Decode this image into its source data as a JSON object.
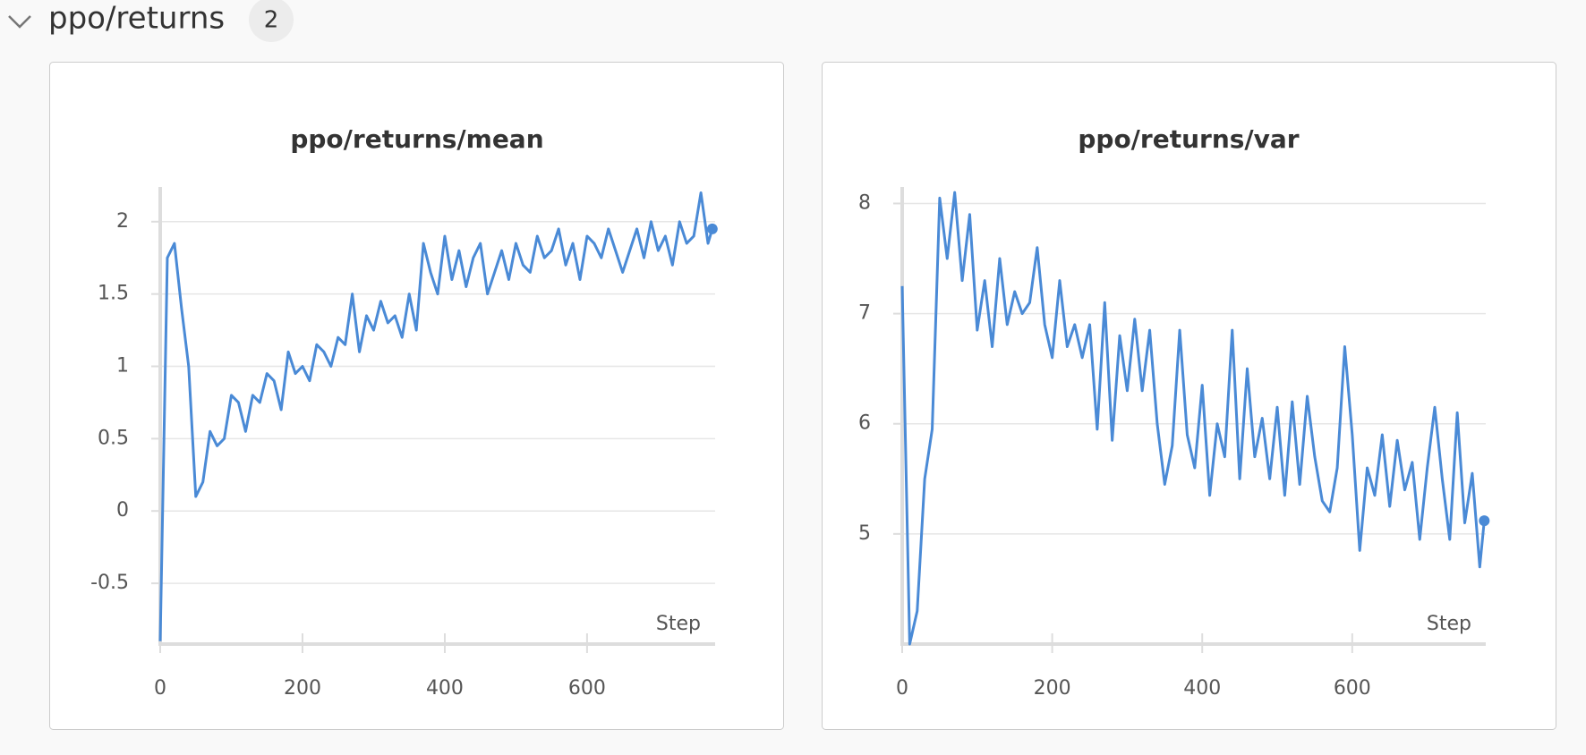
{
  "section": {
    "title": "ppo/returns",
    "count": 2
  },
  "chart_data": [
    {
      "type": "line",
      "title": "ppo/returns/mean",
      "xlabel": "Step",
      "color": "#4a8ad6",
      "grid": true,
      "xlim": [
        0,
        780
      ],
      "xticks": [
        0,
        200,
        400,
        600
      ],
      "ylim": [
        -0.92,
        2.24
      ],
      "yticks": [
        -0.5,
        0,
        0.5,
        1,
        1.5,
        2
      ],
      "x": [
        0,
        10,
        20,
        30,
        40,
        50,
        60,
        70,
        80,
        90,
        100,
        110,
        120,
        130,
        140,
        150,
        160,
        170,
        180,
        190,
        200,
        210,
        220,
        230,
        240,
        250,
        260,
        270,
        280,
        290,
        300,
        310,
        320,
        330,
        340,
        350,
        360,
        370,
        380,
        390,
        400,
        410,
        420,
        430,
        440,
        450,
        460,
        470,
        480,
        490,
        500,
        510,
        520,
        530,
        540,
        550,
        560,
        570,
        580,
        590,
        600,
        610,
        620,
        630,
        640,
        650,
        660,
        670,
        680,
        690,
        700,
        710,
        720,
        730,
        740,
        750,
        760,
        770,
        776
      ],
      "values": [
        -0.9,
        1.75,
        1.85,
        1.4,
        1.0,
        0.1,
        0.2,
        0.55,
        0.45,
        0.5,
        0.8,
        0.75,
        0.55,
        0.8,
        0.75,
        0.95,
        0.9,
        0.7,
        1.1,
        0.95,
        1.0,
        0.9,
        1.15,
        1.1,
        1.0,
        1.2,
        1.15,
        1.5,
        1.1,
        1.35,
        1.25,
        1.45,
        1.3,
        1.35,
        1.2,
        1.5,
        1.25,
        1.85,
        1.65,
        1.5,
        1.9,
        1.6,
        1.8,
        1.55,
        1.75,
        1.85,
        1.5,
        1.65,
        1.8,
        1.6,
        1.85,
        1.7,
        1.65,
        1.9,
        1.75,
        1.8,
        1.95,
        1.7,
        1.85,
        1.6,
        1.9,
        1.85,
        1.75,
        1.95,
        1.8,
        1.65,
        1.8,
        1.95,
        1.75,
        2.0,
        1.8,
        1.9,
        1.7,
        2.0,
        1.85,
        1.9,
        2.2,
        1.85,
        1.95
      ]
    },
    {
      "type": "line",
      "title": "ppo/returns/var",
      "xlabel": "Step",
      "color": "#4a8ad6",
      "grid": true,
      "xlim": [
        0,
        778
      ],
      "xticks": [
        0,
        200,
        400,
        600
      ],
      "ylim": [
        4.0,
        8.15
      ],
      "yticks": [
        5,
        6,
        7,
        8
      ],
      "x": [
        0,
        10,
        20,
        30,
        40,
        50,
        60,
        70,
        80,
        90,
        100,
        110,
        120,
        130,
        140,
        150,
        160,
        170,
        180,
        190,
        200,
        210,
        220,
        230,
        240,
        250,
        260,
        270,
        280,
        290,
        300,
        310,
        320,
        330,
        340,
        350,
        360,
        370,
        380,
        390,
        400,
        410,
        420,
        430,
        440,
        450,
        460,
        470,
        480,
        490,
        500,
        510,
        520,
        530,
        540,
        550,
        560,
        570,
        580,
        590,
        600,
        610,
        620,
        630,
        640,
        650,
        660,
        670,
        680,
        690,
        700,
        710,
        720,
        730,
        740,
        750,
        760,
        770,
        776
      ],
      "values": [
        7.25,
        4.0,
        4.3,
        5.5,
        5.95,
        8.05,
        7.5,
        8.1,
        7.3,
        7.9,
        6.85,
        7.3,
        6.7,
        7.5,
        6.9,
        7.2,
        7.0,
        7.1,
        7.6,
        6.9,
        6.6,
        7.3,
        6.7,
        6.9,
        6.6,
        6.9,
        5.95,
        7.1,
        5.85,
        6.8,
        6.3,
        6.95,
        6.3,
        6.85,
        6.0,
        5.45,
        5.8,
        6.85,
        5.9,
        5.6,
        6.35,
        5.35,
        6.0,
        5.7,
        6.85,
        5.5,
        6.5,
        5.7,
        6.05,
        5.5,
        6.15,
        5.35,
        6.2,
        5.45,
        6.25,
        5.7,
        5.3,
        5.2,
        5.6,
        6.7,
        5.9,
        4.85,
        5.6,
        5.35,
        5.9,
        5.25,
        5.85,
        5.4,
        5.65,
        4.95,
        5.6,
        6.15,
        5.5,
        4.95,
        6.1,
        5.1,
        5.55,
        4.7,
        5.12
      ]
    }
  ]
}
